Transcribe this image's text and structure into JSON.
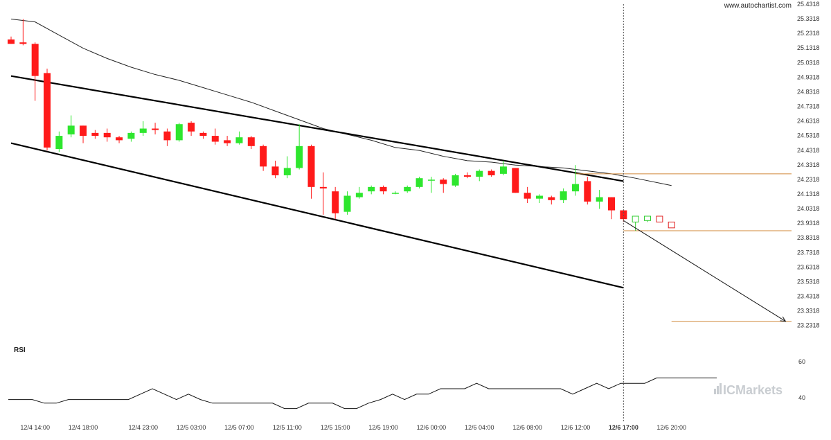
{
  "source": "www.autochartist.com",
  "brand": "ICMarkets",
  "colors": {
    "bull": "#2ee62e",
    "bear": "#ff1a1a",
    "forecast_bull": "#2ecc2e",
    "forecast_bear": "#e02020",
    "channel": "#000000",
    "moving_average": "#222222",
    "level": "#d0893a",
    "rsi": "#111111"
  },
  "chart_data": {
    "type": "candlestick",
    "y_ticks": [
      "25.4318",
      "25.3318",
      "25.2318",
      "25.1318",
      "25.0318",
      "24.9318",
      "24.8318",
      "24.7318",
      "24.6318",
      "24.5318",
      "24.4318",
      "24.3318",
      "24.2318",
      "24.1318",
      "24.0318",
      "23.9318",
      "23.8318",
      "23.7318",
      "23.6318",
      "23.5318",
      "23.4318",
      "23.3318",
      "23.2318"
    ],
    "ylim": [
      23.2018,
      25.4318
    ],
    "x_ticks": [
      {
        "label": "12/4 14:00",
        "bar": 2
      },
      {
        "label": "12/4 18:00",
        "bar": 6
      },
      {
        "label": "12/4 23:00",
        "bar": 11
      },
      {
        "label": "12/5 03:00",
        "bar": 15
      },
      {
        "label": "12/5 07:00",
        "bar": 19
      },
      {
        "label": "12/5 11:00",
        "bar": 23
      },
      {
        "label": "12/5 15:00",
        "bar": 27
      },
      {
        "label": "12/5 19:00",
        "bar": 31
      },
      {
        "label": "12/6 00:00",
        "bar": 35
      },
      {
        "label": "12/6 04:00",
        "bar": 39
      },
      {
        "label": "12/6 08:00",
        "bar": 43
      },
      {
        "label": "12/6 12:00",
        "bar": 47
      },
      {
        "label": "12/6 17:00",
        "bar": 51,
        "bold": true
      },
      {
        "label": "12/6 20:00",
        "bar": 55
      }
    ],
    "candles": [
      {
        "o": 25.19,
        "h": 25.21,
        "l": 25.16,
        "c": 25.16
      },
      {
        "o": 25.17,
        "h": 25.33,
        "l": 25.15,
        "c": 25.16
      },
      {
        "o": 25.16,
        "h": 25.17,
        "l": 24.77,
        "c": 24.94
      },
      {
        "o": 24.96,
        "h": 24.99,
        "l": 24.43,
        "c": 24.45
      },
      {
        "o": 24.44,
        "h": 24.56,
        "l": 24.42,
        "c": 24.53
      },
      {
        "o": 24.54,
        "h": 24.67,
        "l": 24.52,
        "c": 24.6
      },
      {
        "o": 24.6,
        "h": 24.6,
        "l": 24.48,
        "c": 24.53
      },
      {
        "o": 24.55,
        "h": 24.57,
        "l": 24.51,
        "c": 24.53
      },
      {
        "o": 24.55,
        "h": 24.58,
        "l": 24.49,
        "c": 24.52
      },
      {
        "o": 24.52,
        "h": 24.53,
        "l": 24.48,
        "c": 24.5
      },
      {
        "o": 24.51,
        "h": 24.56,
        "l": 24.49,
        "c": 24.55
      },
      {
        "o": 24.55,
        "h": 24.63,
        "l": 24.53,
        "c": 24.58
      },
      {
        "o": 24.58,
        "h": 24.62,
        "l": 24.54,
        "c": 24.57
      },
      {
        "o": 24.56,
        "h": 24.58,
        "l": 24.46,
        "c": 24.5
      },
      {
        "o": 24.5,
        "h": 24.62,
        "l": 24.49,
        "c": 24.61
      },
      {
        "o": 24.62,
        "h": 24.63,
        "l": 24.53,
        "c": 24.56
      },
      {
        "o": 24.55,
        "h": 24.56,
        "l": 24.51,
        "c": 24.53
      },
      {
        "o": 24.53,
        "h": 24.58,
        "l": 24.47,
        "c": 24.49
      },
      {
        "o": 24.5,
        "h": 24.53,
        "l": 24.46,
        "c": 24.48
      },
      {
        "o": 24.48,
        "h": 24.56,
        "l": 24.47,
        "c": 24.52
      },
      {
        "o": 24.52,
        "h": 24.53,
        "l": 24.44,
        "c": 24.46
      },
      {
        "o": 24.46,
        "h": 24.47,
        "l": 24.29,
        "c": 24.32
      },
      {
        "o": 24.32,
        "h": 24.36,
        "l": 24.24,
        "c": 24.26
      },
      {
        "o": 24.26,
        "h": 24.39,
        "l": 24.24,
        "c": 24.31
      },
      {
        "o": 24.31,
        "h": 24.61,
        "l": 24.3,
        "c": 24.46
      },
      {
        "o": 24.46,
        "h": 24.47,
        "l": 24.1,
        "c": 24.18
      },
      {
        "o": 24.18,
        "h": 24.28,
        "l": 23.99,
        "c": 24.17
      },
      {
        "o": 24.15,
        "h": 24.18,
        "l": 23.96,
        "c": 24.0
      },
      {
        "o": 24.01,
        "h": 24.15,
        "l": 23.99,
        "c": 24.12
      },
      {
        "o": 24.11,
        "h": 24.18,
        "l": 24.1,
        "c": 24.14
      },
      {
        "o": 24.15,
        "h": 24.19,
        "l": 24.13,
        "c": 24.18
      },
      {
        "o": 24.18,
        "h": 24.19,
        "l": 24.13,
        "c": 24.15
      },
      {
        "o": 24.14,
        "h": 24.15,
        "l": 24.13,
        "c": 24.14
      },
      {
        "o": 24.15,
        "h": 24.19,
        "l": 24.14,
        "c": 24.18
      },
      {
        "o": 24.18,
        "h": 24.25,
        "l": 24.17,
        "c": 24.24
      },
      {
        "o": 24.23,
        "h": 24.25,
        "l": 24.14,
        "c": 24.23
      },
      {
        "o": 24.23,
        "h": 24.24,
        "l": 24.14,
        "c": 24.2
      },
      {
        "o": 24.19,
        "h": 24.27,
        "l": 24.18,
        "c": 24.26
      },
      {
        "o": 24.26,
        "h": 24.28,
        "l": 24.24,
        "c": 24.25
      },
      {
        "o": 24.25,
        "h": 24.3,
        "l": 24.22,
        "c": 24.29
      },
      {
        "o": 24.29,
        "h": 24.3,
        "l": 24.25,
        "c": 24.26
      },
      {
        "o": 24.27,
        "h": 24.36,
        "l": 24.26,
        "c": 24.32
      },
      {
        "o": 24.31,
        "h": 24.31,
        "l": 24.14,
        "c": 24.14
      },
      {
        "o": 24.14,
        "h": 24.18,
        "l": 24.07,
        "c": 24.1
      },
      {
        "o": 24.1,
        "h": 24.13,
        "l": 24.07,
        "c": 24.12
      },
      {
        "o": 24.11,
        "h": 24.12,
        "l": 24.06,
        "c": 24.09
      },
      {
        "o": 24.09,
        "h": 24.17,
        "l": 24.07,
        "c": 24.15
      },
      {
        "o": 24.15,
        "h": 24.33,
        "l": 24.12,
        "c": 24.2
      },
      {
        "o": 24.22,
        "h": 24.25,
        "l": 24.06,
        "c": 24.08
      },
      {
        "o": 24.08,
        "h": 24.16,
        "l": 24.03,
        "c": 24.11
      },
      {
        "o": 24.11,
        "h": 24.11,
        "l": 23.96,
        "c": 24.02
      },
      {
        "o": 24.02,
        "h": 24.02,
        "l": 23.94,
        "c": 23.96
      }
    ],
    "forecast_candles": [
      {
        "o": 23.94,
        "h": 23.98,
        "l": 23.88,
        "c": 23.98
      },
      {
        "o": 23.95,
        "h": 23.98,
        "l": 23.94,
        "c": 23.98
      },
      {
        "o": 23.98,
        "h": 23.98,
        "l": 23.94,
        "c": 23.94
      },
      {
        "o": 23.94,
        "h": 23.94,
        "l": 23.9,
        "c": 23.9
      }
    ],
    "moving_average": [
      [
        0,
        25.33
      ],
      [
        2,
        25.31
      ],
      [
        4,
        25.22
      ],
      [
        6,
        25.13
      ],
      [
        8,
        25.06
      ],
      [
        10,
        25.0
      ],
      [
        12,
        24.95
      ],
      [
        14,
        24.91
      ],
      [
        16,
        24.86
      ],
      [
        18,
        24.81
      ],
      [
        20,
        24.76
      ],
      [
        22,
        24.7
      ],
      [
        24,
        24.64
      ],
      [
        26,
        24.58
      ],
      [
        28,
        24.54
      ],
      [
        30,
        24.5
      ],
      [
        32,
        24.45
      ],
      [
        34,
        24.43
      ],
      [
        36,
        24.39
      ],
      [
        38,
        24.36
      ],
      [
        40,
        24.35
      ],
      [
        42,
        24.33
      ],
      [
        44,
        24.32
      ],
      [
        46,
        24.31
      ],
      [
        48,
        24.29
      ],
      [
        50,
        24.27
      ],
      [
        52,
        24.24
      ],
      [
        55,
        24.19
      ]
    ],
    "channel_upper": [
      [
        0,
        24.94
      ],
      [
        51,
        24.22
      ]
    ],
    "channel_lower": [
      [
        0,
        24.48
      ],
      [
        51,
        23.49
      ]
    ],
    "resistance_level": {
      "value": 24.27,
      "from_bar": 47,
      "to_bar": 69
    },
    "target_level": {
      "value": 23.26,
      "from_bar": 55,
      "to_bar": 69
    },
    "support_level": {
      "value": 23.88,
      "from_bar": 51,
      "to_bar": 69
    },
    "forecast_arrow": [
      [
        51,
        23.95
      ],
      [
        64.5,
        23.26
      ]
    ],
    "rsi_label": "RSI",
    "rsi_ticks": [
      "60",
      "40"
    ],
    "rsi_ylim": [
      30,
      70
    ],
    "rsi": [
      [
        0,
        39
      ],
      [
        2,
        39
      ],
      [
        3,
        37
      ],
      [
        4,
        37
      ],
      [
        5,
        39
      ],
      [
        6,
        39
      ],
      [
        9,
        39
      ],
      [
        10,
        39
      ],
      [
        11,
        42
      ],
      [
        12,
        45
      ],
      [
        13,
        42
      ],
      [
        14,
        39
      ],
      [
        15,
        42
      ],
      [
        16,
        39
      ],
      [
        17,
        37
      ],
      [
        22,
        37
      ],
      [
        23,
        34
      ],
      [
        24,
        34
      ],
      [
        25,
        37
      ],
      [
        27,
        37
      ],
      [
        28,
        34
      ],
      [
        29,
        34
      ],
      [
        30,
        37
      ],
      [
        31,
        39
      ],
      [
        32,
        42
      ],
      [
        33,
        39
      ],
      [
        34,
        42
      ],
      [
        35,
        42
      ],
      [
        36,
        45
      ],
      [
        38,
        45
      ],
      [
        39,
        48
      ],
      [
        40,
        45
      ],
      [
        46,
        45
      ],
      [
        47,
        42
      ],
      [
        48,
        45
      ],
      [
        49,
        48
      ],
      [
        50,
        45
      ],
      [
        51,
        48
      ],
      [
        53,
        48
      ],
      [
        54,
        51
      ],
      [
        59,
        51
      ]
    ]
  }
}
